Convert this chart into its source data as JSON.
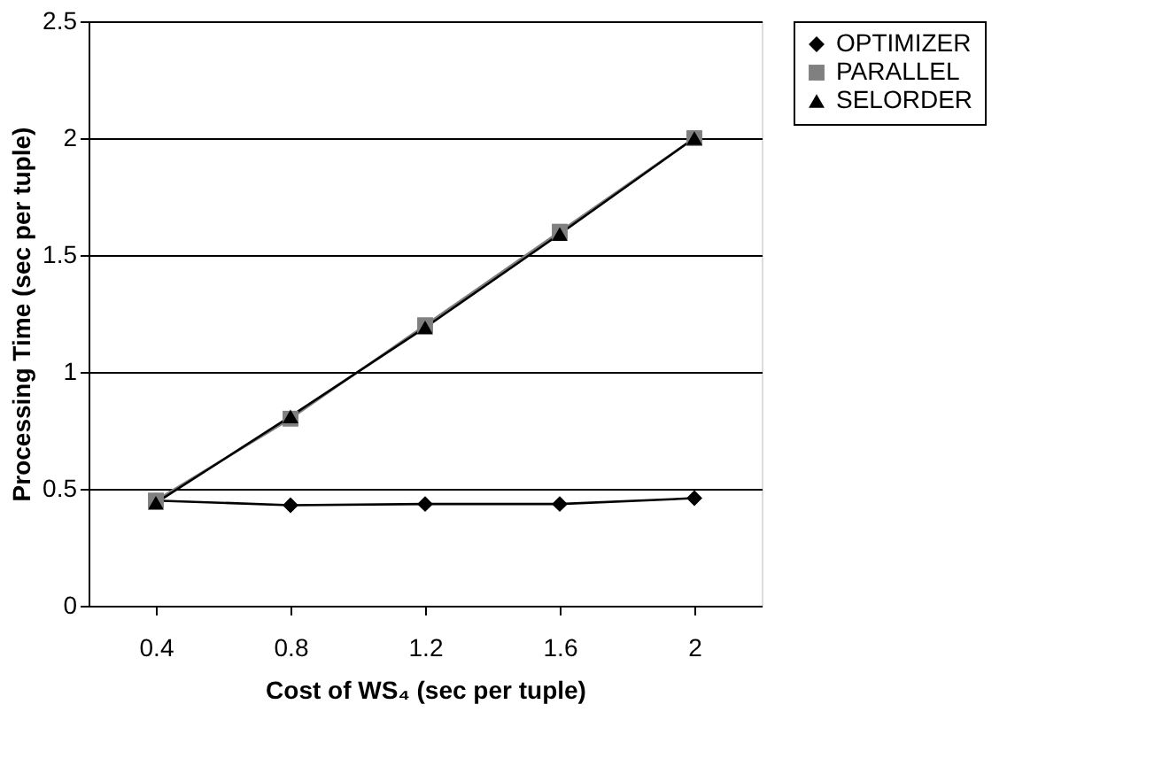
{
  "chart_data": {
    "type": "line",
    "xlabel": "Cost of WS₄ (sec per tuple)",
    "ylabel": "Processing Time (sec per tuple)",
    "categories": [
      "0.4",
      "0.8",
      "1.2",
      "1.6",
      "2"
    ],
    "series": [
      {
        "name": "OPTIMIZER",
        "color": "#000000",
        "marker": "diamond",
        "values": [
          0.45,
          0.43,
          0.435,
          0.435,
          0.46
        ]
      },
      {
        "name": "PARALLEL",
        "color": "#808080",
        "marker": "square",
        "values": [
          0.45,
          0.8,
          1.2,
          1.6,
          2.0
        ]
      },
      {
        "name": "SELORDER",
        "color": "#000000",
        "marker": "triangle",
        "values": [
          0.44,
          0.81,
          1.19,
          1.59,
          2.0
        ]
      }
    ],
    "ylim": [
      0,
      2.5
    ],
    "yticks": [
      0,
      0.5,
      1,
      1.5,
      2,
      2.5
    ],
    "grid": "y",
    "legend": "right",
    "line_style": "solid"
  }
}
